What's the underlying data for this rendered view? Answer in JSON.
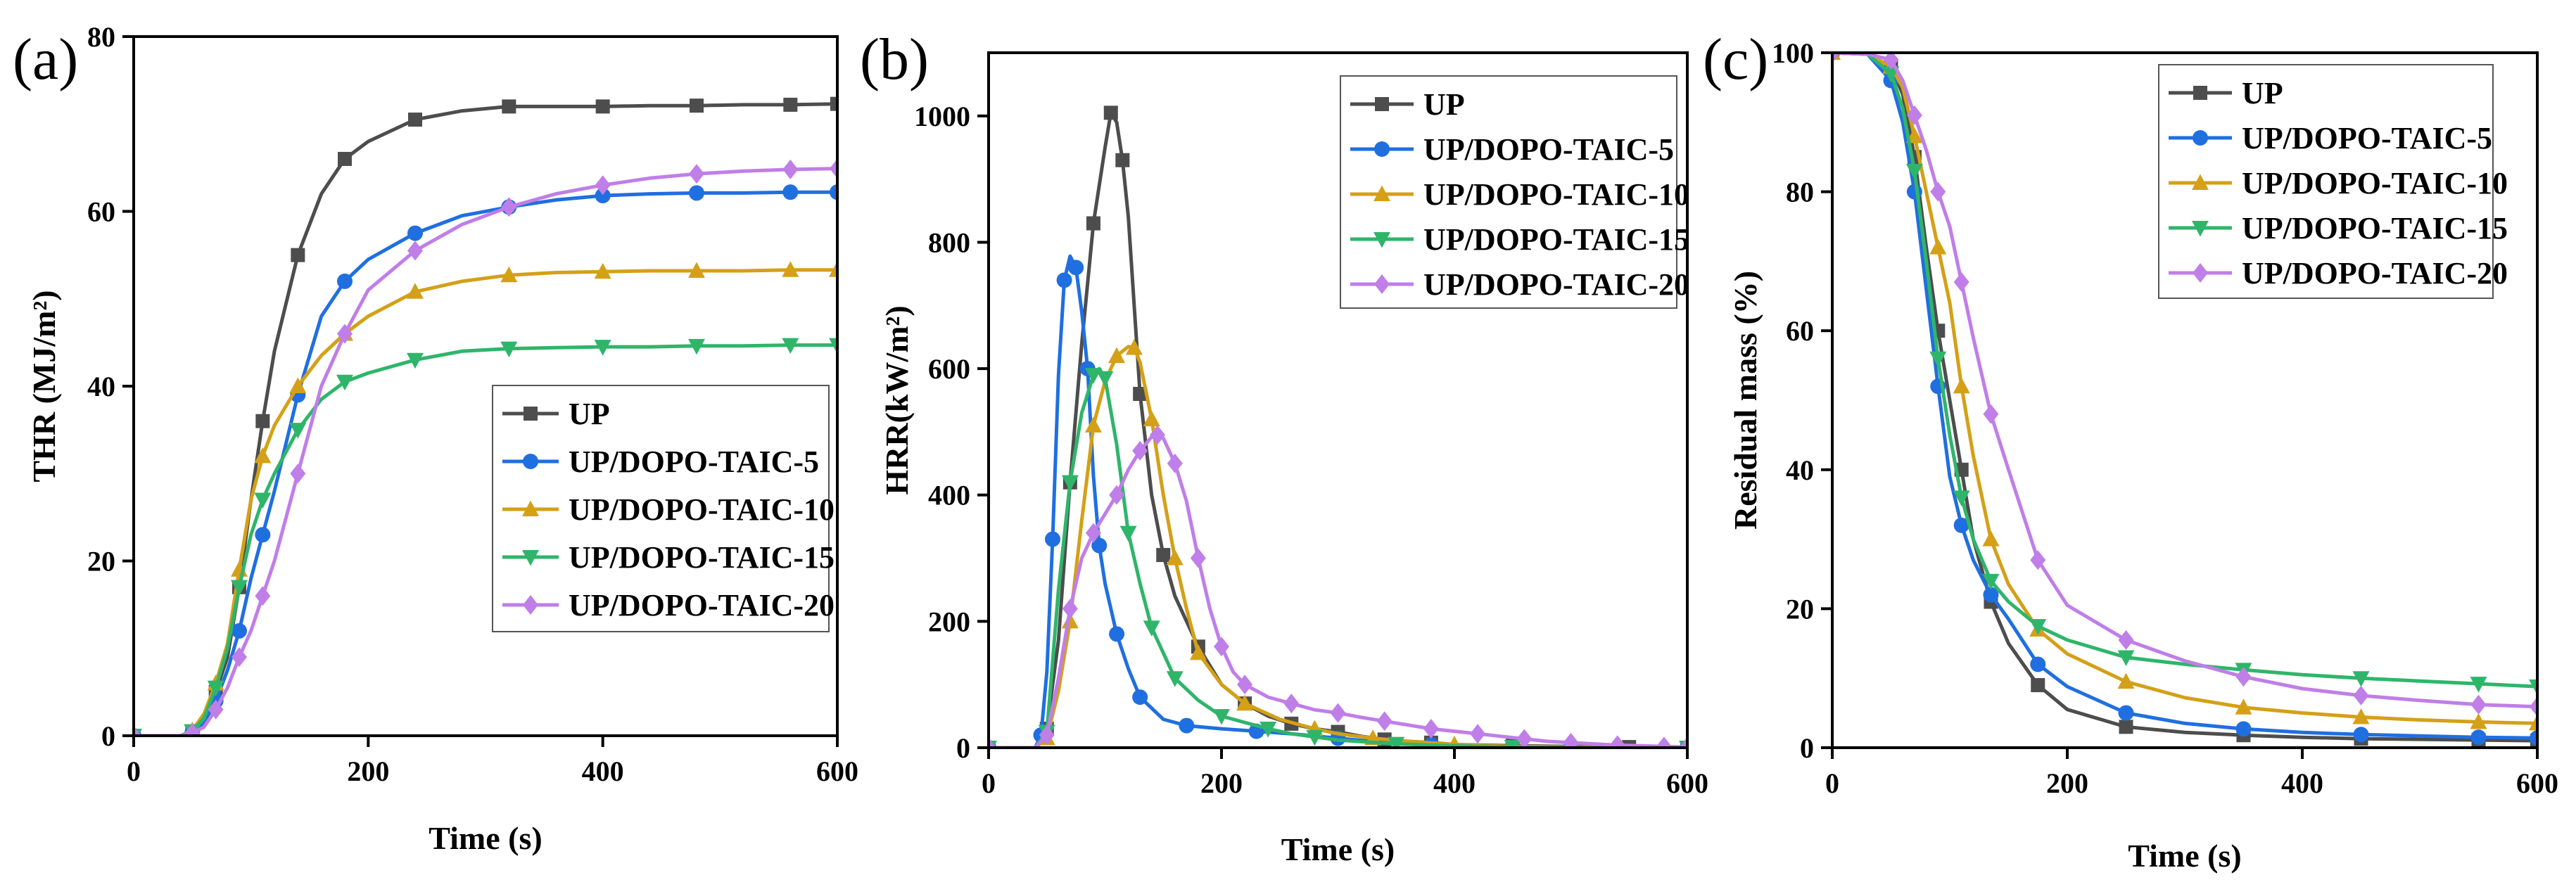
{
  "figure": {
    "colors": {
      "UP": "#4d4d4d",
      "UP/DOPO-TAIC-5": "#1f6fe0",
      "UP/DOPO-TAIC-10": "#d4a017",
      "UP/DOPO-TAIC-15": "#2fb56a",
      "UP/DOPO-TAIC-20": "#c07ee8"
    }
  },
  "chart_data": [
    {
      "panel": "(a)",
      "type": "line",
      "xlabel": "Time (s)",
      "ylabel": "THR (MJ/m²)",
      "xlim": [
        0,
        600
      ],
      "ylim": [
        0,
        80
      ],
      "xticks": [
        0,
        200,
        400,
        600
      ],
      "yticks": [
        0,
        20,
        40,
        60,
        80
      ],
      "legend_position": "center-right",
      "series": [
        {
          "name": "UP",
          "marker": "square",
          "x": [
            0,
            40,
            50,
            60,
            70,
            80,
            90,
            100,
            110,
            120,
            140,
            160,
            180,
            200,
            240,
            280,
            320,
            360,
            400,
            440,
            480,
            520,
            560,
            600
          ],
          "y": [
            0,
            0,
            0.5,
            2,
            5,
            9,
            17,
            27,
            36,
            44,
            55,
            62,
            66,
            68,
            70.5,
            71.5,
            72,
            72,
            72,
            72.1,
            72.1,
            72.2,
            72.2,
            72.3
          ]
        },
        {
          "name": "UP/DOPO-TAIC-5",
          "marker": "circle",
          "x": [
            0,
            40,
            50,
            60,
            70,
            80,
            90,
            100,
            110,
            120,
            140,
            160,
            180,
            200,
            240,
            280,
            320,
            360,
            400,
            440,
            480,
            520,
            560,
            600
          ],
          "y": [
            0,
            0,
            0.4,
            1.5,
            4,
            7.5,
            12,
            18,
            23,
            28,
            39,
            48,
            52,
            54.5,
            57.5,
            59.5,
            60.5,
            61.3,
            61.8,
            62,
            62.1,
            62.1,
            62.2,
            62.2
          ]
        },
        {
          "name": "UP/DOPO-TAIC-10",
          "marker": "triangle-up",
          "x": [
            0,
            40,
            50,
            60,
            70,
            80,
            90,
            100,
            110,
            120,
            140,
            160,
            180,
            200,
            240,
            280,
            320,
            360,
            400,
            440,
            480,
            520,
            560,
            600
          ],
          "y": [
            0,
            0,
            0.6,
            2.5,
            6,
            10.5,
            19,
            27,
            32,
            35.5,
            40,
            43.5,
            46,
            48,
            50.8,
            52,
            52.7,
            53,
            53.1,
            53.2,
            53.2,
            53.2,
            53.3,
            53.3
          ]
        },
        {
          "name": "UP/DOPO-TAIC-15",
          "marker": "triangle-down",
          "x": [
            0,
            40,
            50,
            60,
            70,
            80,
            90,
            100,
            110,
            120,
            140,
            160,
            180,
            200,
            240,
            280,
            320,
            360,
            400,
            440,
            480,
            520,
            560,
            600
          ],
          "y": [
            0,
            0,
            0.5,
            2,
            5.5,
            10,
            17,
            23,
            27,
            30,
            35,
            38.5,
            40.5,
            41.5,
            43,
            44,
            44.3,
            44.4,
            44.5,
            44.5,
            44.6,
            44.6,
            44.7,
            44.7
          ]
        },
        {
          "name": "UP/DOPO-TAIC-20",
          "marker": "diamond",
          "x": [
            0,
            40,
            50,
            60,
            70,
            80,
            90,
            100,
            110,
            120,
            140,
            160,
            180,
            200,
            240,
            280,
            320,
            360,
            400,
            440,
            480,
            520,
            560,
            600
          ],
          "y": [
            0,
            0,
            0.3,
            1,
            3,
            5.5,
            9,
            12,
            16,
            20,
            30,
            40,
            46,
            51,
            55.5,
            58.5,
            60.5,
            62,
            63,
            63.8,
            64.3,
            64.6,
            64.8,
            64.9
          ]
        }
      ]
    },
    {
      "panel": "(b)",
      "type": "line",
      "xlabel": "Time (s)",
      "ylabel": "HRR(kW/m²)",
      "xlim": [
        0,
        600
      ],
      "ylim": [
        0,
        1100
      ],
      "xticks": [
        0,
        200,
        400,
        600
      ],
      "yticks": [
        0,
        200,
        400,
        600,
        800,
        1000
      ],
      "legend_position": "top-right",
      "series": [
        {
          "name": "UP",
          "marker": "square",
          "x": [
            0,
            40,
            50,
            60,
            70,
            80,
            90,
            100,
            105,
            110,
            115,
            120,
            130,
            140,
            150,
            160,
            180,
            200,
            220,
            240,
            260,
            280,
            300,
            320,
            340,
            360,
            380,
            400,
            450,
            500,
            550,
            600
          ],
          "y": [
            0,
            0,
            30,
            170,
            420,
            640,
            830,
            950,
            1005,
            990,
            930,
            840,
            560,
            400,
            305,
            240,
            160,
            100,
            70,
            50,
            38,
            30,
            25,
            18,
            13,
            10,
            8,
            5,
            3,
            2,
            1,
            0
          ]
        },
        {
          "name": "UP/DOPO-TAIC-5",
          "marker": "circle",
          "x": [
            0,
            40,
            45,
            50,
            55,
            60,
            65,
            70,
            75,
            80,
            85,
            90,
            95,
            100,
            110,
            120,
            130,
            150,
            170,
            200,
            230,
            260,
            300,
            340,
            380,
            450,
            500,
            600
          ],
          "y": [
            0,
            0,
            20,
            120,
            330,
            590,
            740,
            778,
            760,
            690,
            600,
            430,
            320,
            260,
            180,
            125,
            80,
            45,
            35,
            30,
            26,
            22,
            15,
            8,
            4,
            1,
            0,
            0
          ]
        },
        {
          "name": "UP/DOPO-TAIC-10",
          "marker": "triangle-up",
          "x": [
            0,
            40,
            50,
            60,
            70,
            80,
            90,
            100,
            110,
            120,
            125,
            130,
            140,
            150,
            160,
            170,
            180,
            200,
            220,
            250,
            280,
            300,
            330,
            360,
            400,
            450,
            500,
            600
          ],
          "y": [
            0,
            0,
            15,
            90,
            200,
            360,
            510,
            580,
            620,
            635,
            633,
            610,
            520,
            400,
            300,
            220,
            150,
            100,
            70,
            45,
            30,
            22,
            15,
            10,
            5,
            2,
            1,
            0
          ]
        },
        {
          "name": "UP/DOPO-TAIC-15",
          "marker": "triangle-down",
          "x": [
            0,
            40,
            50,
            60,
            70,
            80,
            90,
            95,
            100,
            110,
            120,
            130,
            140,
            150,
            160,
            180,
            200,
            220,
            240,
            260,
            280,
            300,
            350,
            400,
            450,
            500,
            600
          ],
          "y": [
            0,
            0,
            25,
            250,
            420,
            530,
            590,
            600,
            585,
            480,
            340,
            260,
            190,
            150,
            110,
            75,
            50,
            40,
            30,
            22,
            17,
            12,
            6,
            3,
            1,
            0,
            0
          ]
        },
        {
          "name": "UP/DOPO-TAIC-20",
          "marker": "diamond",
          "x": [
            0,
            40,
            50,
            60,
            70,
            80,
            90,
            100,
            110,
            120,
            130,
            140,
            145,
            150,
            160,
            170,
            180,
            190,
            200,
            210,
            220,
            240,
            260,
            280,
            300,
            320,
            340,
            360,
            380,
            400,
            420,
            440,
            460,
            480,
            500,
            520,
            540,
            560,
            580,
            600
          ],
          "y": [
            0,
            0,
            20,
            110,
            220,
            300,
            340,
            370,
            400,
            440,
            470,
            492,
            495,
            490,
            450,
            390,
            300,
            220,
            160,
            120,
            100,
            80,
            70,
            60,
            55,
            48,
            42,
            36,
            30,
            26,
            22,
            18,
            14,
            10,
            8,
            6,
            4,
            3,
            2,
            1
          ]
        }
      ]
    },
    {
      "panel": "(c)",
      "type": "line",
      "xlabel": "Time (s)",
      "ylabel": "Residual mass (%)",
      "xlim": [
        0,
        600
      ],
      "ylim": [
        0,
        100
      ],
      "xticks": [
        0,
        200,
        400,
        600
      ],
      "yticks": [
        0,
        20,
        40,
        60,
        80,
        100
      ],
      "legend_position": "top-right",
      "series": [
        {
          "name": "UP",
          "marker": "square",
          "x": [
            0,
            30,
            50,
            60,
            70,
            80,
            90,
            100,
            110,
            120,
            135,
            150,
            175,
            200,
            250,
            300,
            350,
            400,
            450,
            500,
            550,
            600
          ],
          "y": [
            100,
            99.8,
            98,
            94,
            85,
            72,
            60,
            50,
            40,
            30,
            21,
            15,
            9,
            5.5,
            3,
            2.2,
            1.8,
            1.5,
            1.3,
            1.2,
            1.1,
            1
          ]
        },
        {
          "name": "UP/DOPO-TAIC-5",
          "marker": "circle",
          "x": [
            0,
            30,
            50,
            60,
            70,
            80,
            90,
            100,
            110,
            120,
            135,
            150,
            175,
            200,
            250,
            300,
            350,
            400,
            450,
            500,
            550,
            600
          ],
          "y": [
            100,
            99.8,
            96,
            90,
            80,
            66,
            52,
            39,
            32,
            27,
            22,
            18.5,
            12,
            8.8,
            5,
            3.5,
            2.7,
            2.2,
            1.9,
            1.7,
            1.5,
            1.4
          ]
        },
        {
          "name": "UP/DOPO-TAIC-10",
          "marker": "triangle-up",
          "x": [
            0,
            30,
            50,
            60,
            70,
            80,
            90,
            100,
            110,
            120,
            135,
            150,
            175,
            200,
            250,
            300,
            350,
            400,
            450,
            500,
            550,
            600
          ],
          "y": [
            100,
            99.8,
            98,
            95,
            88,
            80,
            72,
            64,
            52,
            42,
            30,
            23.5,
            17,
            13.5,
            9.5,
            7.2,
            5.8,
            5,
            4.4,
            4,
            3.7,
            3.5
          ]
        },
        {
          "name": "UP/DOPO-TAIC-15",
          "marker": "triangle-down",
          "x": [
            0,
            30,
            50,
            60,
            70,
            80,
            90,
            100,
            110,
            120,
            135,
            150,
            175,
            200,
            250,
            300,
            350,
            400,
            450,
            500,
            550,
            600
          ],
          "y": [
            100,
            99.8,
            97,
            92,
            83,
            70,
            56,
            45,
            36,
            30,
            24,
            21,
            17.5,
            15.5,
            13,
            12,
            11.2,
            10.5,
            10,
            9.6,
            9.2,
            8.8
          ]
        },
        {
          "name": "UP/DOPO-TAIC-20",
          "marker": "diamond",
          "x": [
            0,
            30,
            50,
            60,
            70,
            80,
            90,
            100,
            110,
            120,
            135,
            150,
            175,
            200,
            250,
            300,
            350,
            400,
            450,
            500,
            550,
            600
          ],
          "y": [
            100,
            99.8,
            99,
            96,
            91,
            86,
            80,
            75,
            67,
            59,
            48,
            40,
            27,
            20.5,
            15.5,
            12.5,
            10.2,
            8.5,
            7.5,
            6.8,
            6.2,
            5.9
          ]
        }
      ]
    }
  ]
}
